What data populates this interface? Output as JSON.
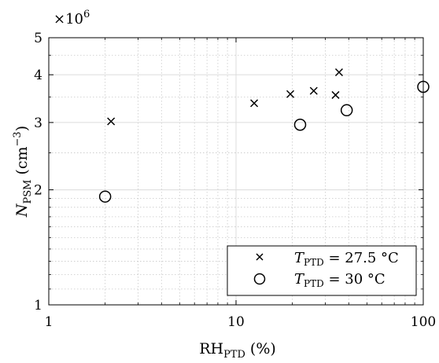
{
  "chart_data": {
    "type": "scatter",
    "title": "",
    "xscale": "log",
    "yscale": "log",
    "xlim": [
      1,
      100
    ],
    "ylim": [
      1000000,
      5000000
    ],
    "y_multiplier_label": {
      "base": "×10",
      "exp": "6"
    },
    "x_ticks": [
      {
        "value": 1,
        "label": "1"
      },
      {
        "value": 10,
        "label": "10"
      },
      {
        "value": 100,
        "label": "100"
      }
    ],
    "y_ticks": [
      {
        "value": 1000000,
        "label": "1"
      },
      {
        "value": 2000000,
        "label": "2"
      },
      {
        "value": 3000000,
        "label": "3"
      },
      {
        "value": 4000000,
        "label": "4"
      },
      {
        "value": 5000000,
        "label": "5"
      }
    ],
    "xlabel": {
      "main": "RH",
      "sub": "PTD",
      "unit": "(%)"
    },
    "ylabel": {
      "main": "N",
      "sub": "PSM",
      "unit_open": "(cm",
      "unit_exp": "−3",
      "unit_close": ")"
    },
    "grid": true,
    "legend_position": "bottom-right",
    "series": [
      {
        "marker": "x",
        "legend": {
          "var": "T",
          "sub": "PTD",
          "rest": " = 27.5 °C"
        },
        "points": [
          {
            "x": 2.15,
            "y": 3020000
          },
          {
            "x": 12.5,
            "y": 3370000
          },
          {
            "x": 19.5,
            "y": 3560000
          },
          {
            "x": 26,
            "y": 3630000
          },
          {
            "x": 34,
            "y": 3540000
          },
          {
            "x": 35.5,
            "y": 4060000
          }
        ]
      },
      {
        "marker": "o",
        "legend": {
          "var": "T",
          "sub": "PTD",
          "rest": " = 30 °C"
        },
        "points": [
          {
            "x": 2.0,
            "y": 1920000
          },
          {
            "x": 22,
            "y": 2960000
          },
          {
            "x": 39,
            "y": 3230000
          },
          {
            "x": 100,
            "y": 3720000
          }
        ]
      }
    ]
  }
}
